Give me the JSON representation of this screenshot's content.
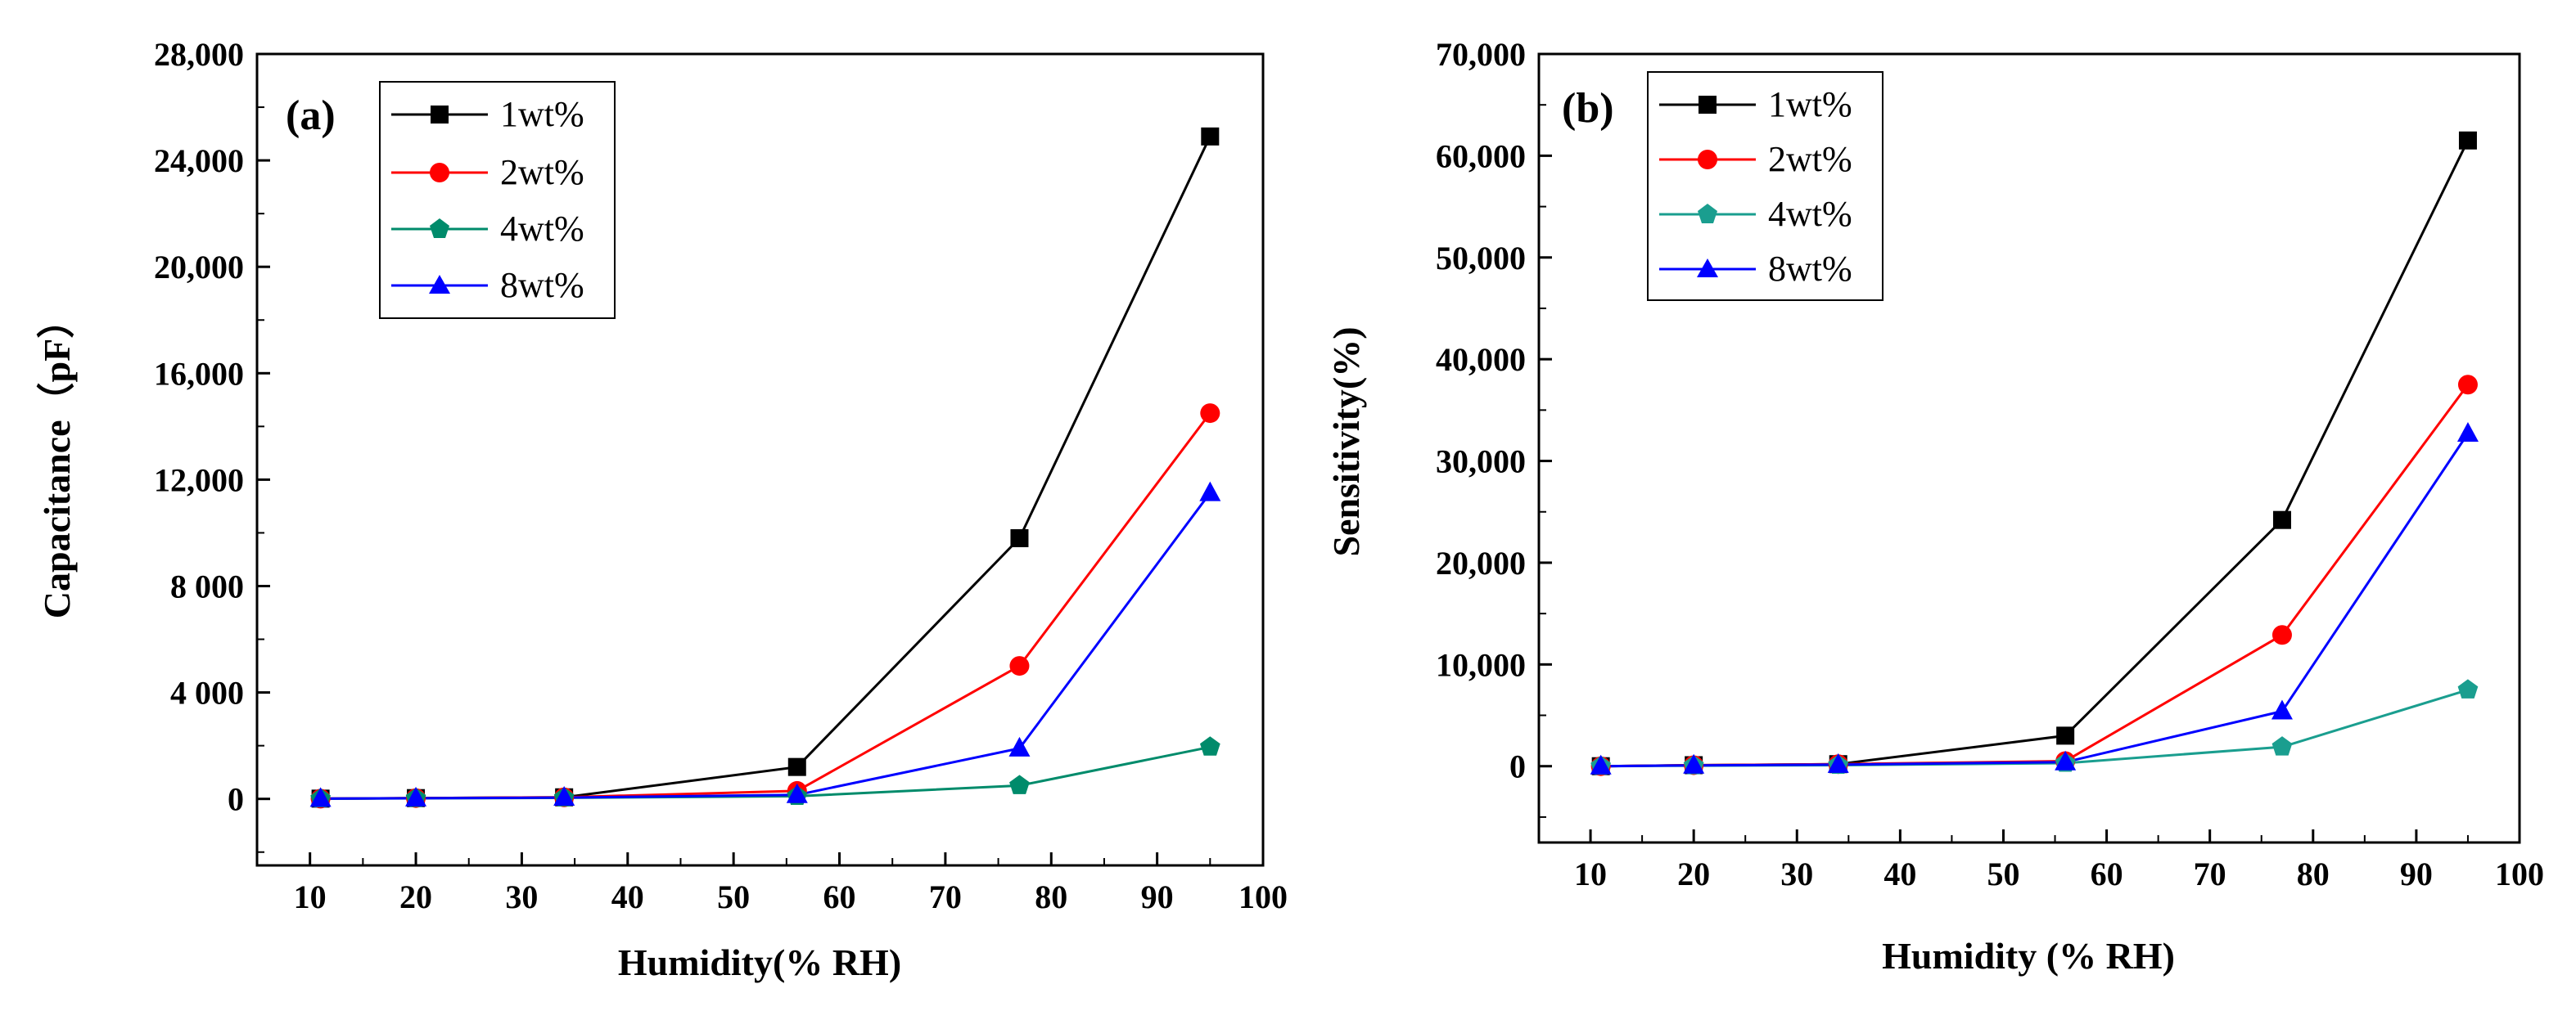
{
  "chart_data": [
    {
      "type": "line",
      "panel_label": "(a)",
      "title": "",
      "xlabel": "Humidity(% RH)",
      "ylabel": "Capacitance（pF）",
      "xlim": [
        5,
        100
      ],
      "ylim": [
        -2500,
        28000
      ],
      "x_ticks": [
        10,
        20,
        30,
        40,
        50,
        60,
        70,
        80,
        90,
        100
      ],
      "x_tick_labels": [
        "10",
        "20",
        "30",
        "40",
        "50",
        "60",
        "70",
        "80",
        "90",
        "100"
      ],
      "y_ticks": [
        0,
        4000,
        8000,
        12000,
        16000,
        20000,
        24000,
        28000
      ],
      "y_tick_labels": [
        "0",
        "4 000",
        "8 000",
        "12,000",
        "16,000",
        "20,000",
        "24,000",
        "28,000"
      ],
      "legend_position": "top-left",
      "x": [
        11,
        20,
        34,
        56,
        77,
        95
      ],
      "series": [
        {
          "name": "1wt%",
          "color": "#000000",
          "marker": "square",
          "values": [
            10,
            30,
            60,
            1200,
            9800,
            24900
          ]
        },
        {
          "name": "2wt%",
          "color": "#ff0000",
          "marker": "circle",
          "values": [
            10,
            30,
            60,
            300,
            5000,
            14500
          ]
        },
        {
          "name": "4wt%",
          "color": "#008b6b",
          "marker": "pentagon",
          "values": [
            5,
            20,
            40,
            100,
            500,
            1950
          ]
        },
        {
          "name": "8wt%",
          "color": "#0000ff",
          "marker": "triangle",
          "values": [
            8,
            25,
            50,
            150,
            1900,
            11500
          ]
        }
      ]
    },
    {
      "type": "line",
      "panel_label": "(b)",
      "title": "",
      "xlabel": "Humidity (% RH)",
      "ylabel": "Sensitivity(%)",
      "xlim": [
        5,
        100
      ],
      "ylim": [
        -7500,
        70000
      ],
      "x_ticks": [
        10,
        20,
        30,
        40,
        50,
        60,
        70,
        80,
        90,
        100
      ],
      "x_tick_labels": [
        "10",
        "20",
        "30",
        "40",
        "50",
        "60",
        "70",
        "80",
        "90",
        "100"
      ],
      "y_ticks": [
        0,
        10000,
        20000,
        30000,
        40000,
        50000,
        60000,
        70000
      ],
      "y_tick_labels": [
        "0",
        "10,000",
        "20,000",
        "30,000",
        "40,000",
        "50,000",
        "60,000",
        "70,000"
      ],
      "legend_position": "top-left",
      "x": [
        11,
        20,
        34,
        56,
        77,
        95
      ],
      "series": [
        {
          "name": "1wt%",
          "color": "#000000",
          "marker": "square",
          "values": [
            0,
            100,
            200,
            3000,
            24200,
            61500
          ]
        },
        {
          "name": "2wt%",
          "color": "#ff0000",
          "marker": "circle",
          "values": [
            0,
            100,
            200,
            500,
            12900,
            37500
          ]
        },
        {
          "name": "4wt%",
          "color": "#1a9e8f",
          "marker": "pentagon",
          "values": [
            0,
            50,
            100,
            300,
            1900,
            7500
          ]
        },
        {
          "name": "8wt%",
          "color": "#0000ff",
          "marker": "triangle",
          "values": [
            0,
            80,
            150,
            400,
            5400,
            32700
          ]
        }
      ]
    }
  ]
}
